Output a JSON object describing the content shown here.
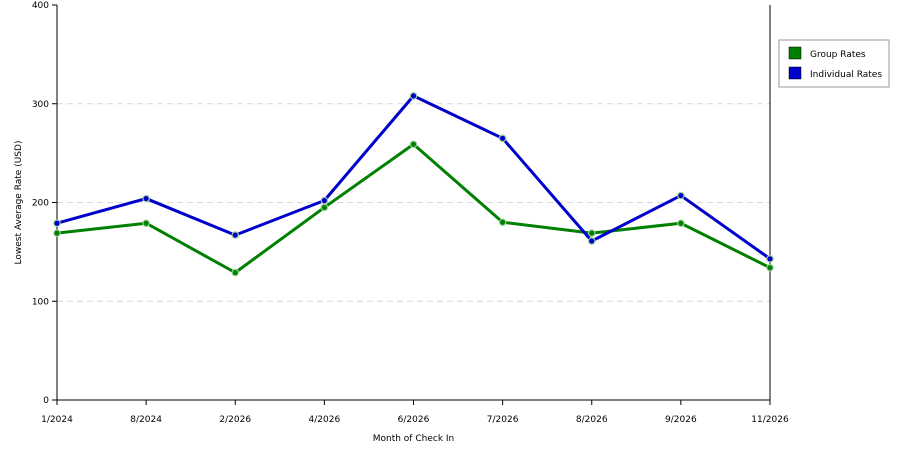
{
  "chart_data": {
    "type": "line",
    "title": "",
    "xlabel": "Month of Check In",
    "ylabel": "Lowest Average Rate (USD)",
    "categories": [
      "1/2024",
      "8/2024",
      "2/2026",
      "4/2026",
      "6/2026",
      "7/2026",
      "8/2026",
      "9/2026",
      "11/2026"
    ],
    "ylim": [
      0,
      400
    ],
    "yticks": [
      0,
      100,
      200,
      300,
      400
    ],
    "grid": true,
    "legend_position": "right",
    "series": [
      {
        "name": "Group Rates",
        "color": "#008000",
        "values": [
          169,
          179,
          129,
          195,
          259,
          180,
          169,
          179,
          134
        ]
      },
      {
        "name": "Individual Rates",
        "color": "#0000cc",
        "values": [
          179,
          204,
          167,
          202,
          308,
          265,
          161,
          207,
          143
        ]
      }
    ]
  }
}
